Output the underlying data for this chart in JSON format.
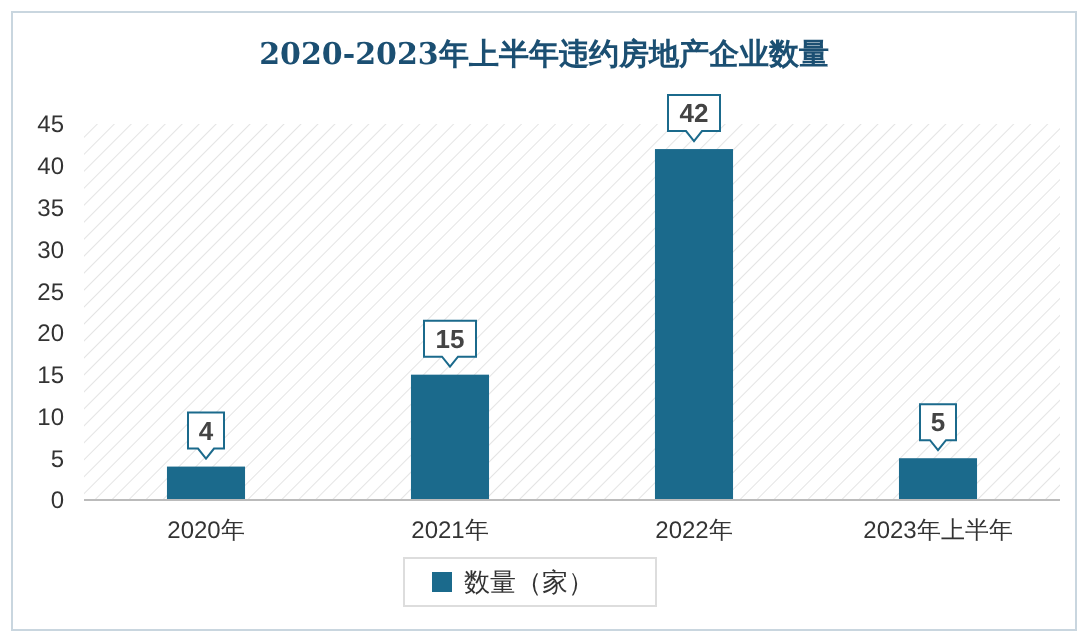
{
  "chart_data": {
    "type": "bar",
    "title": "2020-2023年上半年违约房地产企业数量",
    "categories": [
      "2020年",
      "2021年",
      "2022年",
      "2023年上半年"
    ],
    "series": [
      {
        "name": "数量（家）",
        "color": "#1b6a8c",
        "values": [
          4,
          15,
          42,
          5
        ]
      }
    ],
    "ylim": [
      0,
      45
    ],
    "yticks": [
      0,
      5,
      10,
      15,
      20,
      25,
      30,
      35,
      40,
      45
    ],
    "data_labels": true,
    "legend": "bottom",
    "grid": false
  }
}
